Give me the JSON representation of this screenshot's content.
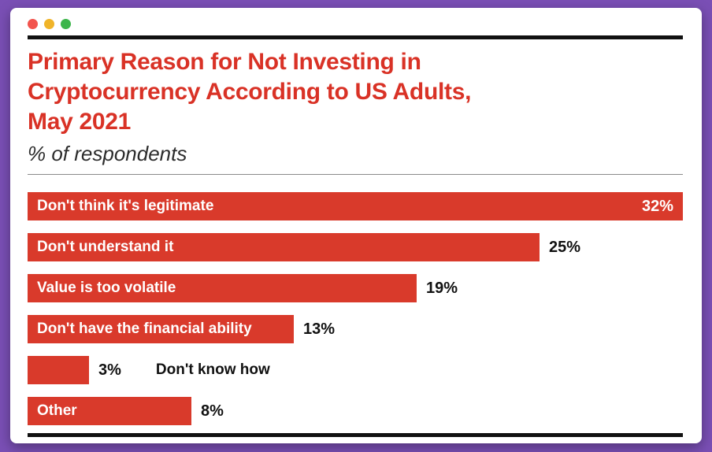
{
  "window": {
    "controls": {
      "close": "close",
      "minimize": "minimize",
      "zoom": "zoom"
    }
  },
  "chart": {
    "title_lines": [
      "Primary Reason for Not Investing in",
      "Cryptocurrency According to US Adults,",
      "May 2021"
    ],
    "subtitle": "% of respondents"
  },
  "chart_data": {
    "type": "bar",
    "orientation": "horizontal",
    "title": "Primary Reason for Not Investing in Cryptocurrency According to US Adults, May 2021",
    "subtitle": "% of respondents",
    "categories": [
      "Don't think it's legitimate",
      "Don't understand it",
      "Value is too volatile",
      "Don't have the financial ability",
      "Don't know how",
      "Other"
    ],
    "values": [
      32,
      25,
      19,
      13,
      3,
      8
    ],
    "value_labels": [
      "32%",
      "25%",
      "19%",
      "13%",
      "3%",
      "8%"
    ],
    "xlim": [
      0,
      32
    ],
    "grid": false,
    "legend": "none",
    "label_placement": [
      "inside",
      "inside",
      "inside",
      "inside",
      "outside",
      "inside"
    ],
    "value_placement": [
      "inside",
      "outside",
      "outside",
      "outside",
      "outside",
      "outside"
    ]
  },
  "colors": {
    "desktop_background": "#7a4fb5",
    "window_background": "#ffffff",
    "title_red": "#d93226",
    "bar_red": "#d93a2b",
    "rule_black": "#111111",
    "traffic_red": "#f2544d",
    "traffic_yellow": "#f0b429",
    "traffic_green": "#3bb54a",
    "bar_label_white": "#ffffff",
    "value_black": "#111111"
  }
}
